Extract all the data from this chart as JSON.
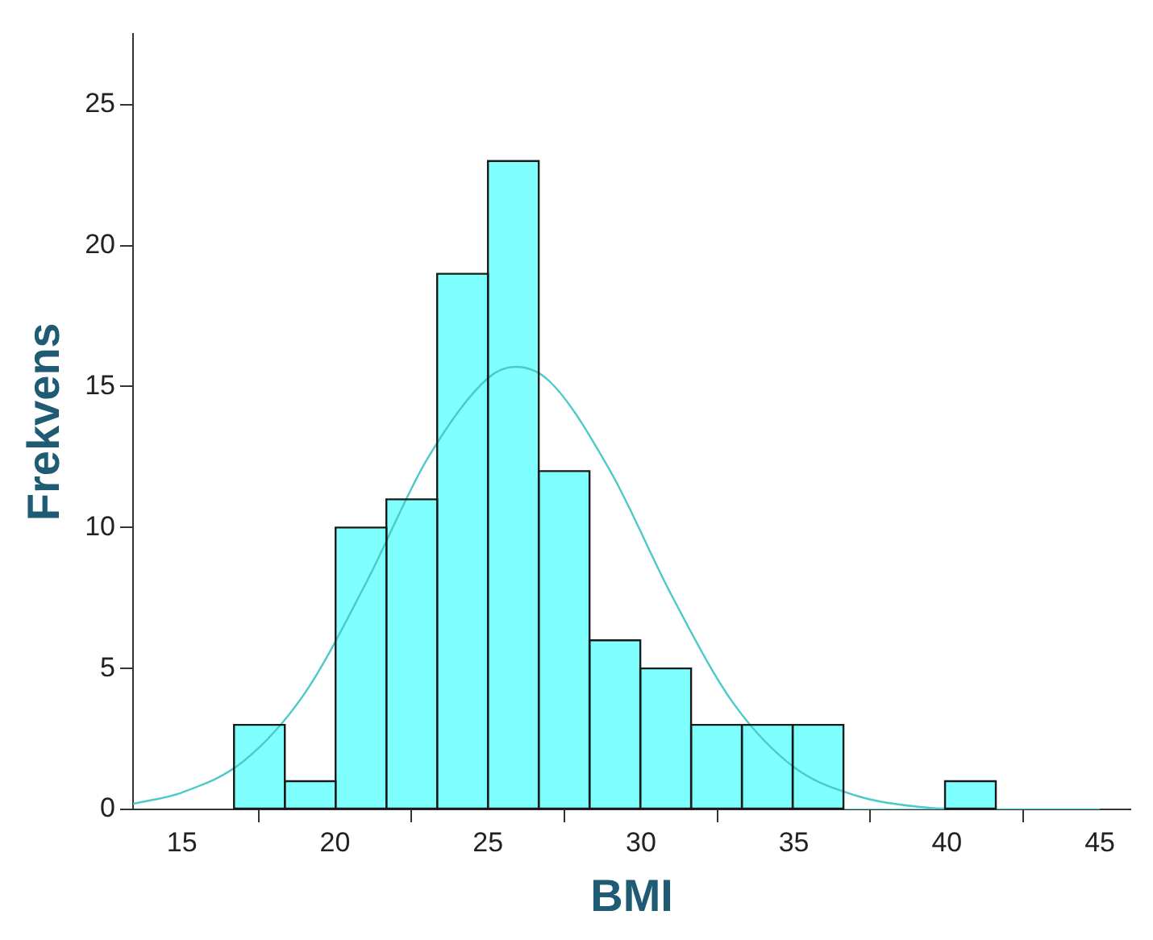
{
  "chart_data": {
    "type": "histogram",
    "xlabel": "BMI",
    "ylabel": "Frekvens",
    "bins": [
      16.7,
      18.36,
      20.02,
      21.68,
      23.34,
      25.0,
      26.66,
      28.32,
      29.98,
      31.64,
      33.3,
      34.96,
      36.62,
      38.28,
      39.94,
      41.6
    ],
    "series": [
      {
        "color": "#80ffff",
        "values": [
          3,
          1,
          10,
          11,
          19,
          23,
          12,
          6,
          5,
          3,
          3,
          3,
          0,
          0,
          1
        ]
      },
      {
        "type": "line",
        "color": "#4cc9c9",
        "x": [
          13.4,
          15,
          17,
          19,
          21,
          23,
          25,
          25.9,
          27,
          29,
          31,
          33,
          35,
          37,
          39,
          41,
          43,
          45
        ],
        "values": [
          0.2,
          0.6,
          1.7,
          4.1,
          8.0,
          12.4,
          15.3,
          15.7,
          15.2,
          12.0,
          7.6,
          3.8,
          1.5,
          0.5,
          0.1,
          0,
          0,
          0
        ]
      }
    ],
    "xlim": [
      13.4,
      46
    ],
    "xticks": [
      15,
      20,
      25,
      30,
      35,
      40,
      45
    ],
    "ylim": [
      0,
      27.5
    ],
    "yticks": [
      0,
      5,
      10,
      15,
      20,
      25
    ],
    "grid": false,
    "legend": false,
    "marker": "none",
    "line_style": "solid"
  }
}
